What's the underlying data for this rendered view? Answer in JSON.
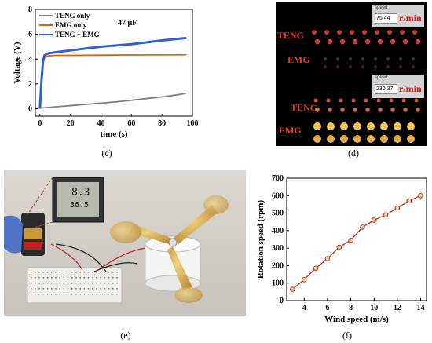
{
  "panels": {
    "c": "(c)",
    "d": "(d)",
    "e": "(e)",
    "f": "(f)"
  },
  "chart_data": [
    {
      "type": "line",
      "panel": "(c)",
      "xlabel": "time (s)",
      "ylabel": "Voltage (V)",
      "xlim": [
        -3,
        100
      ],
      "ylim": [
        -0.6,
        8
      ],
      "xticks": [
        0,
        20,
        40,
        60,
        80,
        100
      ],
      "yticks": [
        0,
        2,
        4,
        6,
        8
      ],
      "annotation": "47 μF",
      "legend_position": "top-left",
      "series": [
        {
          "name": "TENG only",
          "color": "#808080",
          "x": [
            0,
            10,
            20,
            30,
            40,
            50,
            60,
            70,
            80,
            90,
            96
          ],
          "values": [
            0.05,
            0.15,
            0.25,
            0.35,
            0.45,
            0.55,
            0.68,
            0.82,
            0.95,
            1.12,
            1.25
          ]
        },
        {
          "name": "EMG  only",
          "color": "#d2691e",
          "x": [
            0,
            1,
            2,
            3,
            5,
            10,
            20,
            40,
            60,
            80,
            96
          ],
          "values": [
            0,
            2.0,
            3.6,
            4.1,
            4.25,
            4.3,
            4.3,
            4.32,
            4.33,
            4.34,
            4.35
          ]
        },
        {
          "name": "TENG + EMG",
          "color": "#2f5fd0",
          "x": [
            0,
            1,
            2,
            3,
            5,
            10,
            20,
            40,
            60,
            80,
            96
          ],
          "values": [
            0,
            2.2,
            3.8,
            4.3,
            4.45,
            4.55,
            4.7,
            5.0,
            5.2,
            5.5,
            5.7
          ]
        }
      ]
    },
    {
      "type": "line",
      "panel": "(f)",
      "xlabel": "Wind speed (m/s)",
      "ylabel": "Rotation speed (rpm)",
      "xlim": [
        2.5,
        14.5
      ],
      "ylim": [
        0,
        700
      ],
      "xticks": [
        4,
        6,
        8,
        10,
        12,
        14
      ],
      "yticks": [
        0,
        100,
        200,
        300,
        400,
        500,
        600,
        700
      ],
      "series": [
        {
          "color": "#c0392b",
          "x": [
            3,
            4,
            5,
            6,
            7,
            8,
            9,
            10,
            11,
            12,
            13,
            14
          ],
          "values": [
            65,
            120,
            185,
            240,
            305,
            345,
            420,
            460,
            490,
            530,
            570,
            600
          ]
        }
      ]
    }
  ],
  "photo_d": {
    "top_speed_label": "speed",
    "top_speed_value": "75.44",
    "top_unit": "r/min",
    "bottom_speed_label": "speed",
    "bottom_speed_value": "230.37",
    "bottom_unit": "r/min",
    "teng_top": "TENG",
    "emg_top": "EMG",
    "teng_bottom": "TENG",
    "emg_bottom": "EMG"
  },
  "photo_e": {
    "meter_value_1": "8.3",
    "meter_value_2": "36.5"
  }
}
